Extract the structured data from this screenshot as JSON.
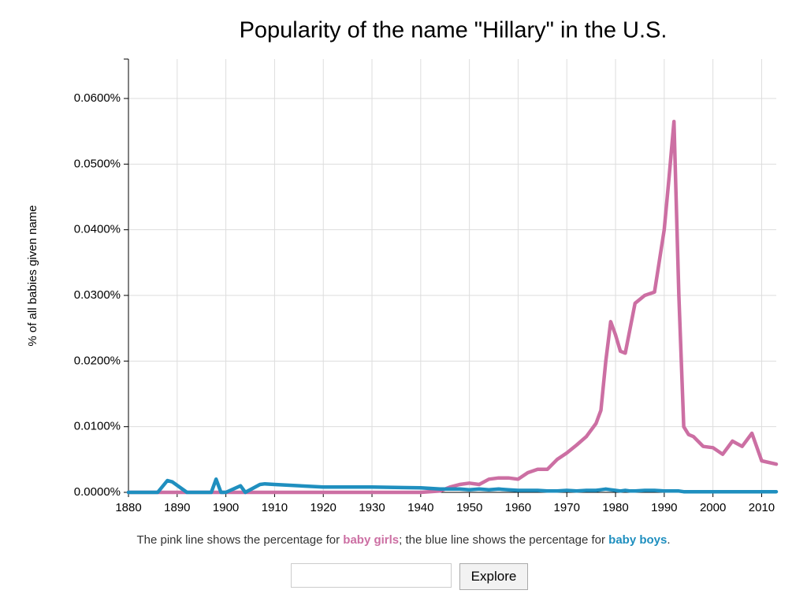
{
  "chart_data": {
    "type": "line",
    "title": "Popularity of the name \"Hillary\" in the U.S.",
    "y_label": "% of all babies given name",
    "x": [
      1880,
      1886,
      1888,
      1889,
      1892,
      1897,
      1898,
      1899,
      1900,
      1903,
      1904,
      1907,
      1908,
      1910,
      1920,
      1930,
      1940,
      1944,
      1946,
      1948,
      1950,
      1952,
      1954,
      1956,
      1958,
      1960,
      1962,
      1964,
      1966,
      1968,
      1970,
      1972,
      1974,
      1976,
      1977,
      1978,
      1979,
      1980,
      1981,
      1982,
      1983,
      1984,
      1986,
      1988,
      1990,
      1991,
      1992,
      1993,
      1994,
      1995,
      1996,
      1998,
      2000,
      2002,
      2004,
      2006,
      2008,
      2010,
      2013
    ],
    "series": [
      {
        "name": "baby girls",
        "color": "#cc6fa3",
        "values": [
          0,
          0,
          0,
          0,
          0,
          0,
          0,
          0,
          0,
          0,
          0,
          0,
          0,
          0,
          0,
          0,
          0,
          0.0002,
          0.0008,
          0.0012,
          0.0014,
          0.0012,
          0.002,
          0.0022,
          0.0022,
          0.002,
          0.003,
          0.0035,
          0.0035,
          0.005,
          0.006,
          0.0072,
          0.0085,
          0.0105,
          0.0125,
          0.02,
          0.026,
          0.024,
          0.0215,
          0.0212,
          0.025,
          0.0288,
          0.03,
          0.0305,
          0.04,
          0.048,
          0.0565,
          0.03,
          0.01,
          0.0088,
          0.0085,
          0.007,
          0.0068,
          0.0058,
          0.0078,
          0.007,
          0.009,
          0.0048,
          0.0043
        ]
      },
      {
        "name": "baby boys",
        "color": "#1f8fbf",
        "values": [
          0,
          0,
          0.0018,
          0.0016,
          0,
          0,
          0.002,
          0,
          0,
          0.001,
          0,
          0.0012,
          0.0013,
          0.0012,
          0.0008,
          0.0008,
          0.0007,
          0.0005,
          0.0005,
          0.0005,
          0.0004,
          0.0005,
          0.0004,
          0.0005,
          0.0004,
          0.0003,
          0.0003,
          0.0003,
          0.0002,
          0.0002,
          0.0003,
          0.0002,
          0.0003,
          0.0003,
          0.0004,
          0.0005,
          0.0004,
          0.0003,
          0.0002,
          0.0003,
          0.0002,
          0.0002,
          0.0003,
          0.0003,
          0.0002,
          0.0002,
          0.0002,
          0.0002,
          0.0001,
          0.0001,
          0.0001,
          0.0001,
          0.0001,
          0.0001,
          0.0001,
          0.0001,
          0.0001,
          0.0001,
          0.0001
        ]
      }
    ],
    "xlim": [
      1880,
      2013
    ],
    "xticks": [
      1880,
      1890,
      1900,
      1910,
      1920,
      1930,
      1940,
      1950,
      1960,
      1970,
      1980,
      1990,
      2000,
      2010
    ],
    "ylim": [
      0,
      0.066
    ],
    "yticks": [
      {
        "value": 0,
        "label": "0.0000%"
      },
      {
        "value": 0.01,
        "label": "0.0100%"
      },
      {
        "value": 0.02,
        "label": "0.0200%"
      },
      {
        "value": 0.03,
        "label": "0.0300%"
      },
      {
        "value": 0.04,
        "label": "0.0400%"
      },
      {
        "value": 0.05,
        "label": "0.0500%"
      },
      {
        "value": 0.06,
        "label": "0.0600%"
      }
    ],
    "grid": true
  },
  "caption": [
    "The pink line shows the percentage for ",
    "baby girls",
    "; the blue line shows the percentage for ",
    "baby boys",
    "."
  ],
  "button": "Explore"
}
